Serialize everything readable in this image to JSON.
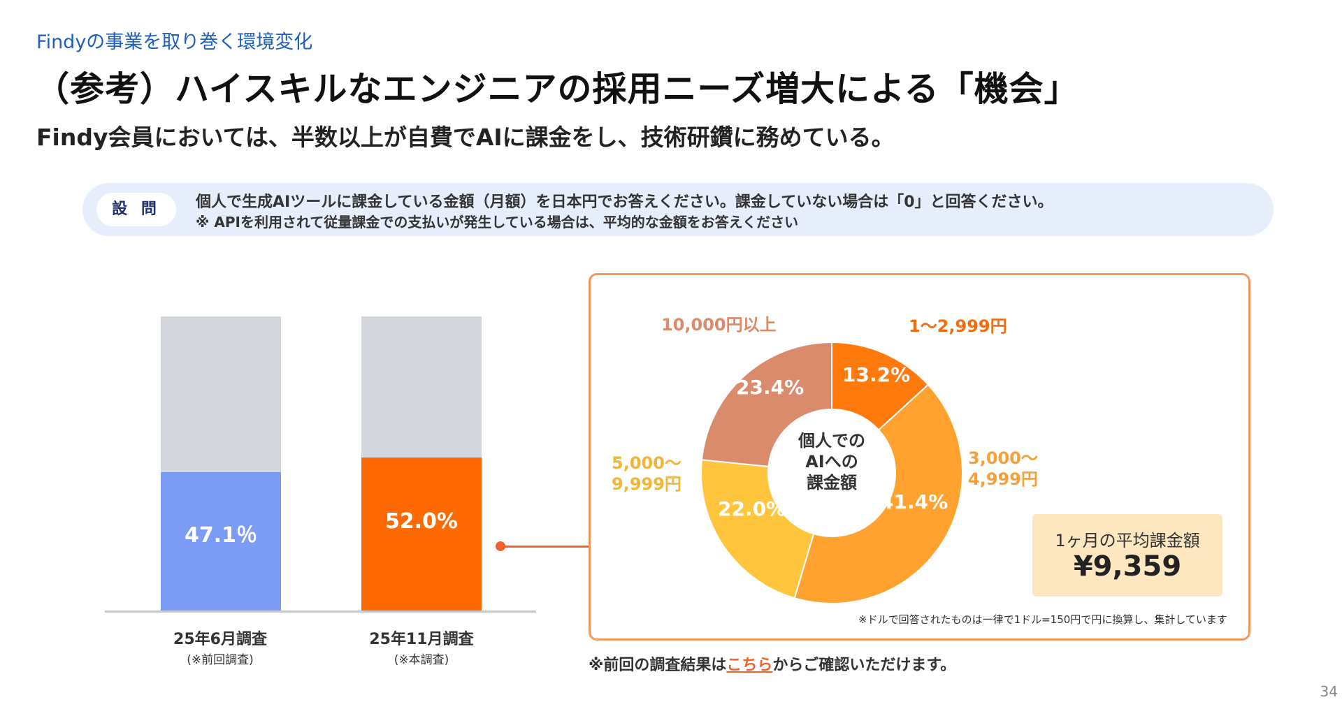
{
  "header": {
    "section": "Findyの事業を取り巻く環境変化",
    "title": "（参考）ハイスキルなエンジニアの採用ニーズ増大による「機会」",
    "subtitle": "Findy会員においては、半数以上が自費でAIに課金をし、技術研鑽に務めている。"
  },
  "question": {
    "badge": "設 問",
    "line1": "個人で生成AIツールに課金している金額（月額）を日本円でお答えください。課金していない場合は「0」と回答ください。",
    "line2": "※ APIを利用されて従量課金での支払いが発生している場合は、平均的な金額をお答えください"
  },
  "chart_data": [
    {
      "type": "bar",
      "categories": [
        "25年6月調査",
        "25年11月調査"
      ],
      "category_notes": [
        "(※前回調査)",
        "(※本調査)"
      ],
      "values": [
        47.1,
        52.0
      ],
      "value_labels": [
        "47.1％",
        "52.0%"
      ],
      "ylim": [
        0,
        100
      ],
      "colors": [
        "#7b9bf5",
        "#ff6a00"
      ],
      "background_color": "#d3d7db"
    },
    {
      "type": "pie",
      "donut": true,
      "center_label": [
        "個人での",
        "AIへの",
        "課金額"
      ],
      "slices": [
        {
          "label": "1〜2,999円",
          "label_lines": [
            "1〜2,999円"
          ],
          "value": 13.2,
          "value_label": "13.2%",
          "color": "#ff7a0b",
          "label_color": "#f26d10"
        },
        {
          "label": "3,000〜4,999円",
          "label_lines": [
            "3,000〜",
            "4,999円"
          ],
          "value": 41.4,
          "value_label": "41.4%",
          "color": "#ffa230",
          "label_color": "#f5a03a"
        },
        {
          "label": "5,000〜9,999円",
          "label_lines": [
            "5,000〜",
            "9,999円"
          ],
          "value": 22.0,
          "value_label": "22.0%",
          "color": "#ffc53d",
          "label_color": "#f0b63a"
        },
        {
          "label": "10,000円以上",
          "label_lines": [
            "10,000円以上"
          ],
          "value": 23.4,
          "value_label": "23.4%",
          "color": "#d98b6b",
          "label_color": "#d98b6b"
        }
      ]
    }
  ],
  "average": {
    "label": "1ヶ月の平均課金額",
    "value": "¥9,359"
  },
  "footnote": "※ドルで回答されたものは一律で1ドル=150円で円に換算し、集計しています",
  "bottom_note": {
    "prefix": "※前回の調査結果は",
    "link": "こちら",
    "suffix": "からご確認いただけます。"
  },
  "page_number": "34"
}
